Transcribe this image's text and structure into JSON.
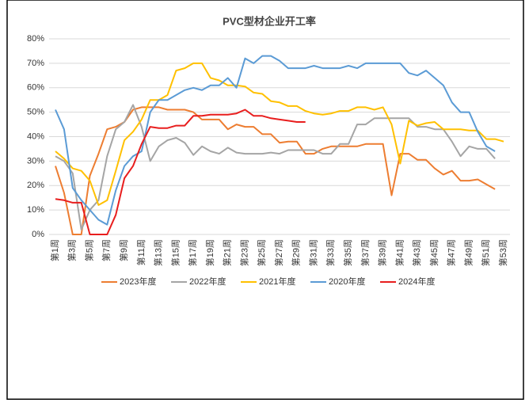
{
  "chart_data": {
    "type": "line",
    "title": "PVC型材企业开工率",
    "categories": [
      "第1周",
      null,
      "第3周",
      null,
      "第5周",
      null,
      "第7周",
      null,
      "第9周",
      null,
      "第11周",
      null,
      "第13周",
      null,
      "第15周",
      null,
      "第17周",
      null,
      "第19周",
      null,
      "第21周",
      null,
      "第23周",
      null,
      "第25周",
      null,
      "第27周",
      null,
      "第29周",
      null,
      "第31周",
      null,
      "第33周",
      null,
      "第35周",
      null,
      "第37周",
      null,
      "第39周",
      null,
      "第41周",
      null,
      "第43周",
      null,
      "第45周",
      null,
      "第47周",
      null,
      "第49周",
      null,
      "第51周",
      null,
      "第53周"
    ],
    "series": [
      {
        "name": "2023年度",
        "color": "#ed7d31",
        "values": [
          28,
          17,
          0,
          0,
          24,
          33,
          43,
          44,
          46,
          51,
          52,
          52,
          52,
          51,
          51,
          51,
          50,
          47,
          47,
          47,
          43,
          45,
          44,
          44,
          41,
          41,
          37.5,
          38,
          38,
          33,
          33,
          35,
          36,
          36,
          36,
          36,
          37,
          37,
          37,
          16,
          33,
          33,
          30.5,
          30.5,
          27,
          24.5,
          26,
          22,
          22,
          22.5,
          20.5,
          18.5,
          null
        ]
      },
      {
        "name": "2022年度",
        "color": "#a5a5a5",
        "values": [
          32,
          30,
          25,
          2,
          10,
          14,
          32,
          43,
          46,
          53,
          44,
          30,
          36,
          38.5,
          39.5,
          37.5,
          32.5,
          36,
          34,
          33,
          35.5,
          33.5,
          33,
          33,
          33,
          33.5,
          33,
          34.5,
          34.5,
          34.5,
          34.5,
          33,
          33,
          37,
          37,
          45,
          45,
          47.5,
          47.5,
          47.5,
          47.5,
          47.5,
          44,
          44,
          43,
          43,
          38,
          32,
          36,
          35,
          35,
          31,
          null
        ]
      },
      {
        "name": "2021年度",
        "color": "#ffc000",
        "values": [
          34,
          31,
          27,
          26,
          22,
          12,
          14,
          26,
          38.5,
          42,
          47,
          55,
          55,
          57,
          67,
          68,
          70,
          70,
          64,
          63,
          61,
          61,
          60.5,
          58,
          57.5,
          54.5,
          54,
          52.5,
          52.5,
          50.5,
          49.5,
          49,
          49.5,
          50.5,
          50.5,
          52,
          52,
          51,
          52,
          45,
          29,
          46.5,
          44.5,
          45.5,
          46,
          43,
          43,
          43,
          42.5,
          42.5,
          39,
          39,
          38
        ]
      },
      {
        "name": "2020年度",
        "color": "#5b9bd5",
        "values": [
          51,
          43,
          19,
          14,
          10,
          6,
          4,
          18,
          28,
          32,
          34,
          50,
          55,
          55,
          57,
          59,
          60,
          59,
          61,
          61,
          64,
          60,
          72,
          70,
          73,
          73,
          71,
          68,
          68,
          68,
          69,
          68,
          68,
          68,
          69,
          68,
          70,
          70,
          70,
          70,
          70,
          66,
          65,
          67,
          64,
          61,
          54,
          50,
          50,
          42,
          36,
          34,
          null
        ]
      },
      {
        "name": "2024年度",
        "color": "#e81e1e",
        "values": [
          14.5,
          14,
          13,
          13,
          0,
          0,
          0,
          8,
          23,
          28,
          37,
          44,
          43.5,
          43.5,
          44.5,
          44.5,
          48.5,
          48.5,
          49,
          49,
          49,
          49.5,
          51,
          48.5,
          48.5,
          47.5,
          47,
          46.5,
          46,
          46,
          null,
          null,
          null,
          null,
          null,
          null,
          null,
          null,
          null,
          null,
          null,
          null,
          null,
          null,
          null,
          null,
          null,
          null,
          null,
          null,
          null,
          null,
          null
        ]
      }
    ],
    "ylim": [
      0,
      80
    ],
    "yticks": [
      {
        "value": 0,
        "label": "0%"
      },
      {
        "value": 10,
        "label": "10%"
      },
      {
        "value": 20,
        "label": "20%"
      },
      {
        "value": 30,
        "label": "30%"
      },
      {
        "value": 40,
        "label": "40%"
      },
      {
        "value": 50,
        "label": "50%"
      },
      {
        "value": 60,
        "label": "60%"
      },
      {
        "value": 70,
        "label": "70%"
      },
      {
        "value": 80,
        "label": "80%"
      }
    ],
    "grid": true,
    "legend": "bottom"
  }
}
